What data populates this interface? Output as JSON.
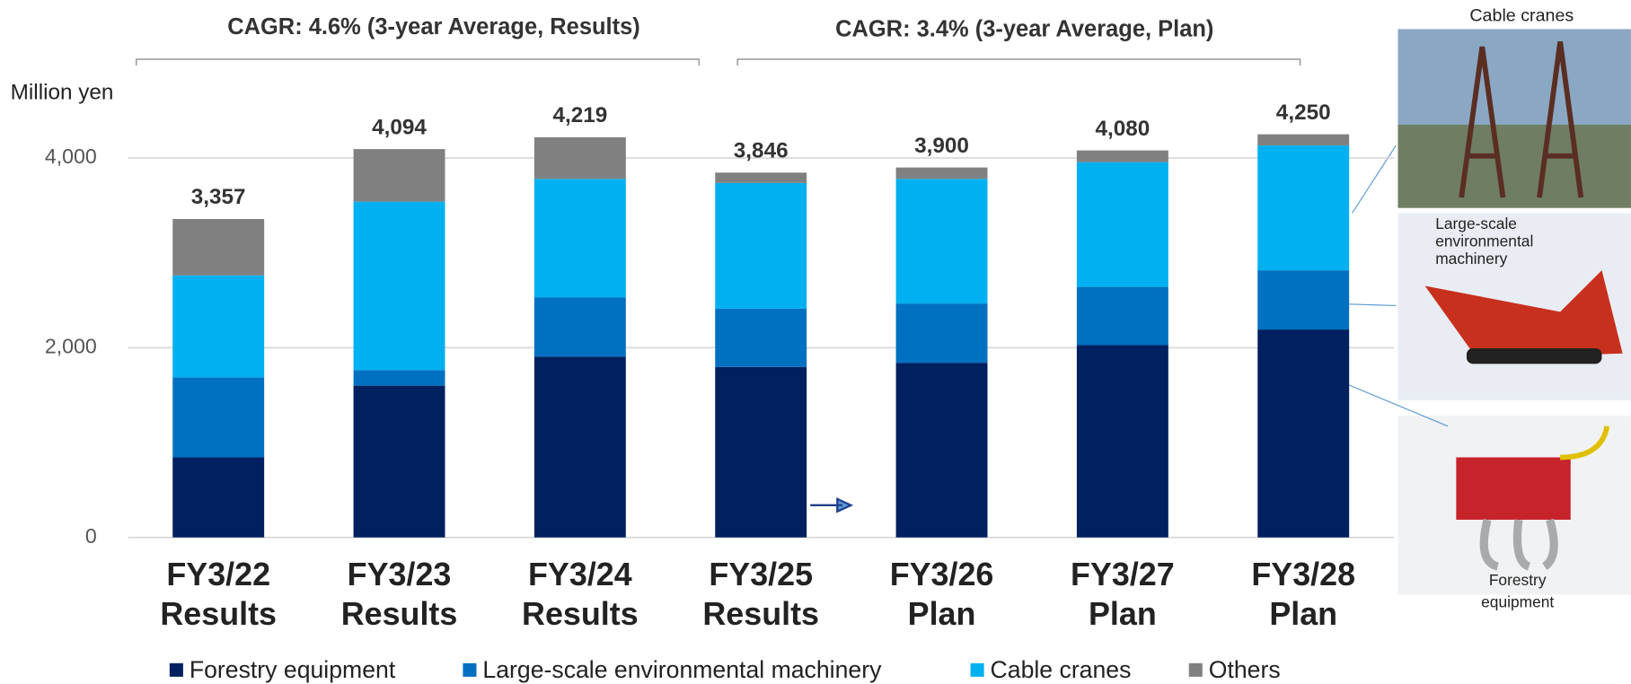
{
  "chart_data": {
    "type": "stacked_bar",
    "unit_label": "Million yen",
    "annotations": [
      "CAGR: 4.6% (3-year Average, Results)",
      "CAGR: 3.4% (3-year Average, Plan)"
    ],
    "categories": [
      [
        "FY3/22",
        "Results"
      ],
      [
        "FY3/23",
        "Results"
      ],
      [
        "FY3/24",
        "Results"
      ],
      [
        "FY3/25",
        "Results"
      ],
      [
        "FY3/26",
        "Plan"
      ],
      [
        "FY3/27",
        "Plan"
      ],
      [
        "FY3/28",
        "Plan"
      ]
    ],
    "series": [
      {
        "name": "Forestry equipment",
        "color": "#002060",
        "values": [
          844,
          1600,
          1907,
          1797,
          1841,
          2027,
          2192
        ]
      },
      {
        "name": "Large-scale environmental machinery",
        "color": "#0070c0",
        "values": [
          844,
          164,
          625,
          614,
          625,
          614,
          624
        ]
      },
      {
        "name": "Cable cranes",
        "color": "#00b0f0",
        "values": [
          1074,
          1776,
          1249,
          1326,
          1315,
          1315,
          1316
        ]
      },
      {
        "name": "Others",
        "color": "#808080",
        "values": [
          595,
          554,
          438,
          109,
          119,
          124,
          118
        ]
      }
    ],
    "totals": [
      3357,
      4094,
      4219,
      3846,
      3900,
      4080,
      4250
    ],
    "total_labels": [
      "3,357",
      "4,094",
      "4,219",
      "3,846",
      "3,900",
      "4,080",
      "4,250"
    ],
    "ylim": [
      0,
      4500
    ],
    "yticks": [
      0,
      {
        "value": 2000,
        "label": "2,000"
      },
      {
        "value": 4000,
        "label": "4,000"
      }
    ],
    "grid": true,
    "legend": "bottom",
    "photo_captions": [
      "Cable cranes",
      "Large-scale environmental machinery",
      "Forestry equipment"
    ]
  }
}
